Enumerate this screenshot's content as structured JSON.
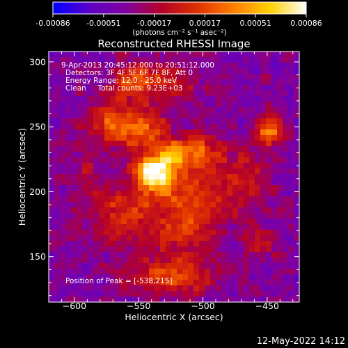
{
  "colorbar": {
    "tick_labels": [
      "-0.00086",
      "-0.00051",
      "-0.00017",
      "0.00017",
      "0.00051",
      "0.00086"
    ],
    "unit_label": "(photons cm⁻² s⁻¹ asec⁻²)",
    "colors": [
      "#0000ff",
      "#5a00c8",
      "#8000a0",
      "#b40028",
      "#e03000",
      "#ff8000",
      "#ffd000",
      "#ffffff"
    ]
  },
  "title": "Reconstructed RHESSI Image",
  "annotations": {
    "time": "9-Apr-2013 20:45:12.000 to 20:51:12.000",
    "detectors": "Detectors: 3F 4F 5F 6F 7F 8F, Att 0",
    "energy": "Energy Range: 12.0 - 25.0 keV",
    "clean": "Clean     Total counts: 9.23E+03",
    "peak": "Position of Peak = [-538,215]"
  },
  "timestamp": "12-May-2022 14:12",
  "chart_data": {
    "type": "heatmap",
    "title": "Reconstructed RHESSI Image",
    "xlabel": "Heliocentric X (arcsec)",
    "ylabel": "Heliocentric Y (arcsec)",
    "xlim": [
      -620,
      -425
    ],
    "ylim": [
      115,
      308
    ],
    "xticks": [
      -600,
      -550,
      -500,
      -450
    ],
    "yticks": [
      150,
      200,
      250,
      300
    ],
    "xtick_labels": [
      "−600",
      "−550",
      "−500",
      "−450"
    ],
    "ytick_labels": [
      "150",
      "200",
      "250",
      "300"
    ],
    "colorbar_range": [
      -0.00086,
      0.00086
    ],
    "peak": {
      "x": -538,
      "y": 215,
      "value": 0.00086
    },
    "sources": [
      {
        "x": -538,
        "y": 215,
        "sx": 10,
        "sy": 9,
        "amp": 1.0
      },
      {
        "x": -522,
        "y": 228,
        "sx": 10,
        "sy": 8,
        "amp": 0.55
      },
      {
        "x": -548,
        "y": 248,
        "sx": 16,
        "sy": 12,
        "amp": 0.45
      },
      {
        "x": -515,
        "y": 200,
        "sx": 22,
        "sy": 14,
        "amp": 0.4
      },
      {
        "x": -560,
        "y": 180,
        "sx": 18,
        "sy": 16,
        "amp": 0.38
      },
      {
        "x": -512,
        "y": 170,
        "sx": 16,
        "sy": 14,
        "amp": 0.35
      },
      {
        "x": -575,
        "y": 255,
        "sx": 14,
        "sy": 12,
        "amp": 0.35
      },
      {
        "x": -555,
        "y": 285,
        "sx": 12,
        "sy": 10,
        "amp": 0.4
      },
      {
        "x": -527,
        "y": 285,
        "sx": 14,
        "sy": 10,
        "amp": 0.35
      },
      {
        "x": -448,
        "y": 248,
        "sx": 8,
        "sy": 8,
        "amp": 0.6
      },
      {
        "x": -525,
        "y": 135,
        "sx": 22,
        "sy": 10,
        "amp": 0.45
      },
      {
        "x": -500,
        "y": 230,
        "sx": 10,
        "sy": 10,
        "amp": 0.42
      },
      {
        "x": -470,
        "y": 210,
        "sx": 14,
        "sy": 18,
        "amp": 0.25
      },
      {
        "x": -590,
        "y": 210,
        "sx": 10,
        "sy": 22,
        "amp": 0.15
      },
      {
        "x": -455,
        "y": 160,
        "sx": 10,
        "sy": 10,
        "amp": 0.2
      }
    ]
  }
}
